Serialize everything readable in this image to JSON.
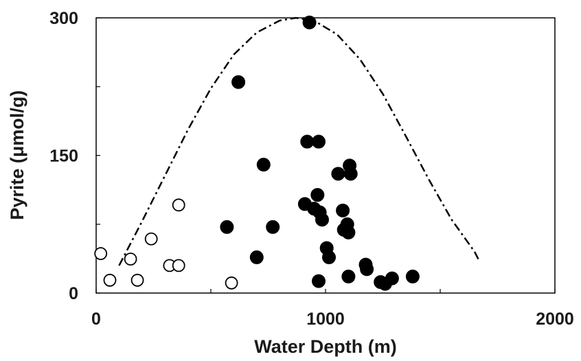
{
  "chart_data": {
    "type": "scatter",
    "title": "",
    "xlabel": "Water Depth (m)",
    "ylabel": "Pyrite (μmol/g)",
    "xlim": [
      0,
      2000
    ],
    "ylim": [
      0,
      300
    ],
    "x_ticks": [
      0,
      1000,
      2000
    ],
    "x_tick_labels": [
      "0",
      "1000",
      "2000"
    ],
    "y_ticks": [
      0,
      150,
      300
    ],
    "y_tick_labels": [
      "0",
      "150",
      "300"
    ],
    "grid": false,
    "legend": "none",
    "colors": {
      "filled_marker": "#000000",
      "open_marker_fill": "#ffffff",
      "open_marker_stroke": "#000000",
      "curve": "#000000",
      "axis": "#000000"
    },
    "series": [
      {
        "marker": "open-circle",
        "points": [
          {
            "x": 20,
            "y": 43
          },
          {
            "x": 60,
            "y": 14
          },
          {
            "x": 150,
            "y": 37
          },
          {
            "x": 180,
            "y": 14
          },
          {
            "x": 240,
            "y": 59
          },
          {
            "x": 320,
            "y": 30
          },
          {
            "x": 360,
            "y": 30
          },
          {
            "x": 360,
            "y": 96
          },
          {
            "x": 590,
            "y": 11
          }
        ]
      },
      {
        "marker": "filled-circle",
        "points": [
          {
            "x": 570,
            "y": 72
          },
          {
            "x": 620,
            "y": 230
          },
          {
            "x": 700,
            "y": 39
          },
          {
            "x": 730,
            "y": 140
          },
          {
            "x": 770,
            "y": 72
          },
          {
            "x": 910,
            "y": 97
          },
          {
            "x": 920,
            "y": 165
          },
          {
            "x": 930,
            "y": 295
          },
          {
            "x": 950,
            "y": 92
          },
          {
            "x": 965,
            "y": 107
          },
          {
            "x": 970,
            "y": 165
          },
          {
            "x": 970,
            "y": 13
          },
          {
            "x": 975,
            "y": 88
          },
          {
            "x": 985,
            "y": 80
          },
          {
            "x": 1005,
            "y": 49
          },
          {
            "x": 1015,
            "y": 39
          },
          {
            "x": 1055,
            "y": 130
          },
          {
            "x": 1075,
            "y": 90
          },
          {
            "x": 1080,
            "y": 69
          },
          {
            "x": 1095,
            "y": 75
          },
          {
            "x": 1100,
            "y": 66
          },
          {
            "x": 1100,
            "y": 18
          },
          {
            "x": 1105,
            "y": 139
          },
          {
            "x": 1110,
            "y": 130
          },
          {
            "x": 1175,
            "y": 31
          },
          {
            "x": 1180,
            "y": 26
          },
          {
            "x": 1240,
            "y": 12
          },
          {
            "x": 1260,
            "y": 10
          },
          {
            "x": 1290,
            "y": 16
          },
          {
            "x": 1380,
            "y": 18
          }
        ]
      }
    ],
    "curve": {
      "style": "dash-dot",
      "points": [
        {
          "x": 100,
          "y": 30
        },
        {
          "x": 200,
          "y": 78
        },
        {
          "x": 300,
          "y": 128
        },
        {
          "x": 400,
          "y": 178
        },
        {
          "x": 500,
          "y": 223
        },
        {
          "x": 600,
          "y": 260
        },
        {
          "x": 700,
          "y": 284
        },
        {
          "x": 800,
          "y": 297
        },
        {
          "x": 870,
          "y": 300
        },
        {
          "x": 950,
          "y": 297
        },
        {
          "x": 1050,
          "y": 282
        },
        {
          "x": 1150,
          "y": 255
        },
        {
          "x": 1250,
          "y": 217
        },
        {
          "x": 1350,
          "y": 171
        },
        {
          "x": 1450,
          "y": 124
        },
        {
          "x": 1550,
          "y": 80
        },
        {
          "x": 1650,
          "y": 45
        },
        {
          "x": 1670,
          "y": 35
        }
      ]
    }
  }
}
